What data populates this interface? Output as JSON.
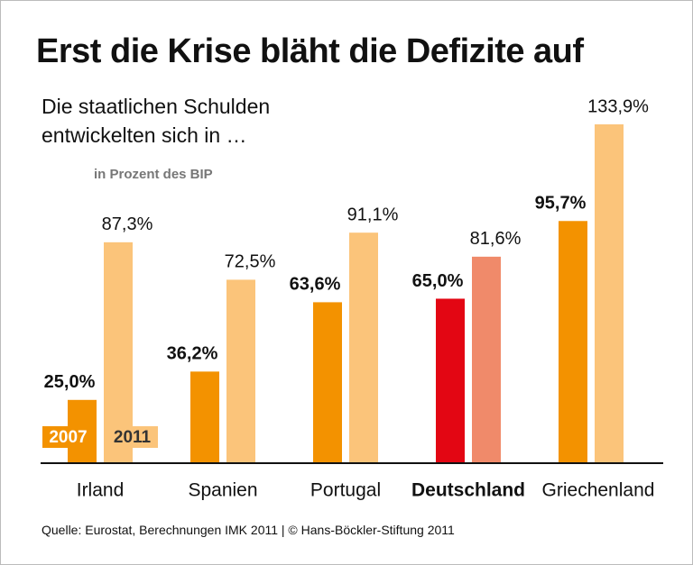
{
  "chart_data": {
    "type": "bar",
    "title": "Erst die Krise bläht die Defizite auf",
    "subtitle": "Die staatlichen Schulden entwickelten sich in …",
    "y_label": "in Prozent des BIP",
    "source": "Quelle: Eurostat, Berechnungen IMK 2011 | © Hans-Böckler-Stiftung 2011",
    "categories": [
      "Irland",
      "Spanien",
      "Portugal",
      "Deutschland",
      "Griechenland"
    ],
    "series": [
      {
        "name": "2007",
        "color": "#f39200",
        "colors": [
          "#f39200",
          "#f39200",
          "#f39200",
          "#e30613",
          "#f39200"
        ],
        "values": [
          25.0,
          36.2,
          63.6,
          65.0,
          95.7
        ],
        "value_labels": [
          "25,0%",
          "36,2%",
          "63,6%",
          "65,0%",
          "95,7%"
        ]
      },
      {
        "name": "2011",
        "color": "#fbc47a",
        "colors": [
          "#fbc47a",
          "#fbc47a",
          "#fbc47a",
          "#f08a6a",
          "#fbc47a"
        ],
        "values": [
          87.3,
          72.5,
          91.1,
          81.6,
          133.9
        ],
        "value_labels": [
          "87,3%",
          "72,5%",
          "91,1%",
          "81,6%",
          "133,9%"
        ]
      }
    ],
    "legend": "bottom-left",
    "grid": false
  }
}
